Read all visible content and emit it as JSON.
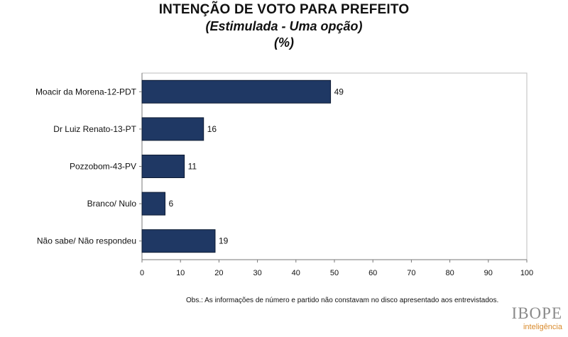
{
  "chart_data": {
    "type": "bar",
    "orientation": "horizontal",
    "title": "INTENÇÃO DE VOTO PARA PREFEITO",
    "subtitle": "(Estimulada - Uma opção)",
    "unit": "(%)",
    "categories": [
      "Moacir da Morena-12-PDT",
      "Dr Luiz Renato-13-PT",
      "Pozzobom-43-PV",
      "Branco/ Nulo",
      "Não sabe/ Não respondeu"
    ],
    "values": [
      49,
      16,
      11,
      6,
      19
    ],
    "xlim": [
      0,
      100
    ],
    "xticks": [
      0,
      10,
      20,
      30,
      40,
      50,
      60,
      70,
      80,
      90,
      100
    ],
    "xlabel": "",
    "ylabel": "",
    "bar_color": "#1f3864",
    "grid": false
  },
  "note": "Obs.: As informações de número e partido não constavam no disco apresentado aos entrevistados.",
  "logo": {
    "word": "IBOPE",
    "sub": "inteligência",
    "word_color": "#8a8a8a",
    "sub_color": "#d98a2b"
  }
}
